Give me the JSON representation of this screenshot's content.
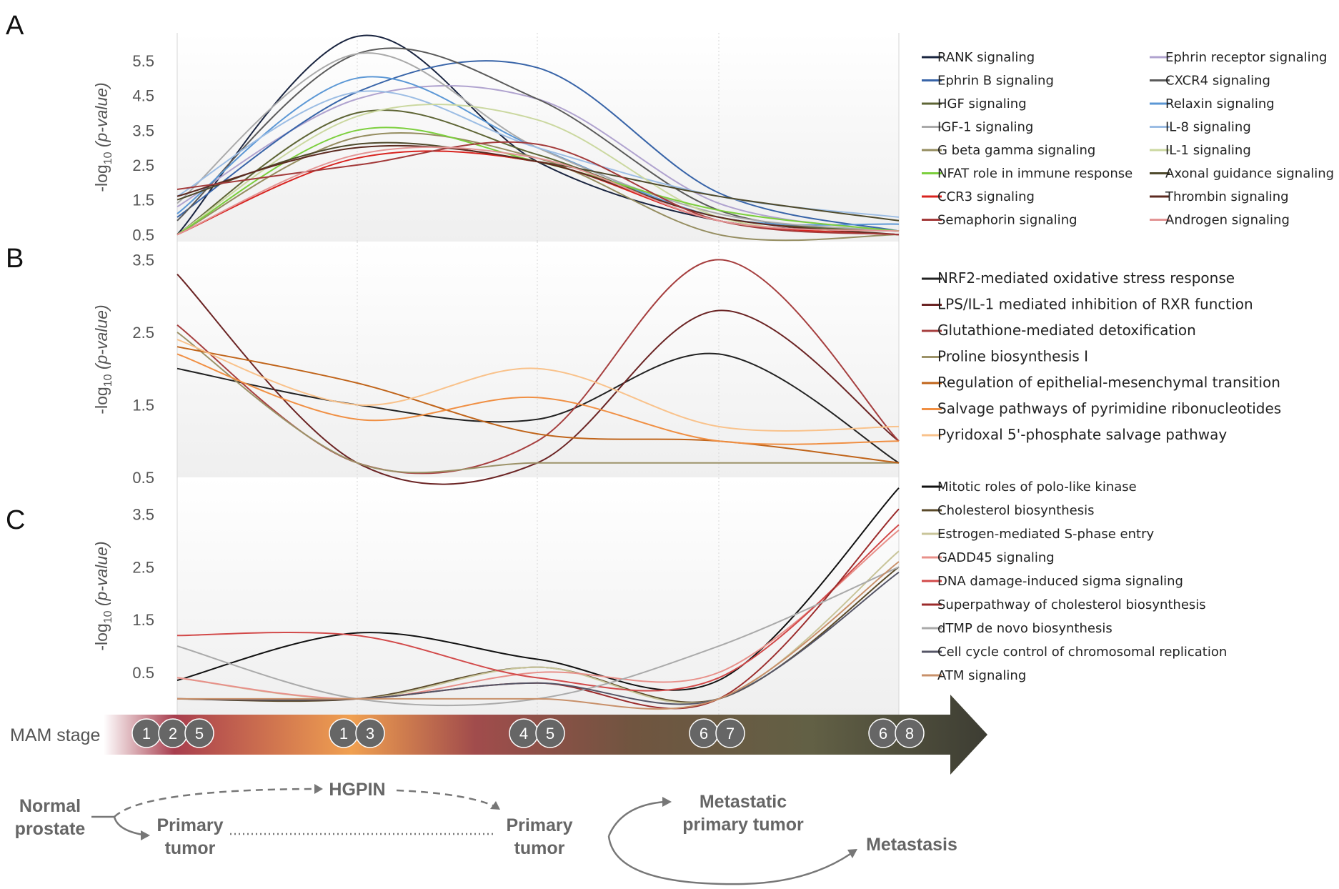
{
  "panels": [
    {
      "letter": "A",
      "ylabel_main": "-log",
      "ylabel_sub": "10",
      "ylabel_rest": " (p-value)",
      "yticks": [
        "0.5",
        "1.5",
        "2.5",
        "3.5",
        "4.5",
        "5.5"
      ]
    },
    {
      "letter": "B",
      "ylabel_main": "-log",
      "ylabel_sub": "10",
      "ylabel_rest": " (p-value)",
      "yticks": [
        "0.5",
        "1.5",
        "2.5",
        "3.5"
      ]
    },
    {
      "letter": "C",
      "ylabel_main": "-log",
      "ylabel_sub": "10",
      "ylabel_rest": " (p-value)",
      "yticks": [
        "0.5",
        "1.5",
        "2.5",
        "3.5"
      ]
    }
  ],
  "chart_data": [
    {
      "type": "line",
      "panel": "A",
      "x_stages": [
        "1 2 5",
        "1 3",
        "4 5",
        "6 7",
        "6 8"
      ],
      "ylim": [
        0.3,
        6.3
      ],
      "yticks": [
        0.5,
        1.5,
        2.5,
        3.5,
        4.5,
        5.5
      ],
      "legend_placement": "right, two columns",
      "series": [
        {
          "name": "RANK signaling",
          "color": "#1a2540",
          "values": [
            0.5,
            6.2,
            2.6,
            0.9,
            0.6
          ]
        },
        {
          "name": "Ephrin receptor signaling",
          "color": "#b0a3cf",
          "values": [
            1.3,
            4.4,
            4.4,
            1.4,
            0.6
          ]
        },
        {
          "name": "Ephrin B signaling",
          "color": "#3864a8",
          "values": [
            1.0,
            4.6,
            5.3,
            1.7,
            0.6
          ]
        },
        {
          "name": "CXCR4 signaling",
          "color": "#5a5a5a",
          "values": [
            0.9,
            5.7,
            4.4,
            1.2,
            0.6
          ]
        },
        {
          "name": "HGF signaling",
          "color": "#5e6535",
          "values": [
            0.5,
            4.0,
            2.8,
            1.0,
            0.6
          ]
        },
        {
          "name": "Relaxin signaling",
          "color": "#5b97d5",
          "values": [
            1.1,
            5.0,
            3.0,
            1.0,
            0.8
          ]
        },
        {
          "name": "IGF-1 signaling",
          "color": "#aaaaaa",
          "values": [
            1.4,
            5.7,
            3.0,
            1.1,
            0.6
          ]
        },
        {
          "name": "IL-8 signaling",
          "color": "#9cbde4",
          "values": [
            1.6,
            4.6,
            3.0,
            1.6,
            1.0
          ]
        },
        {
          "name": "G beta gamma signaling",
          "color": "#958d60",
          "values": [
            0.5,
            3.3,
            2.7,
            0.5,
            0.5
          ]
        },
        {
          "name": "IL-1 signaling",
          "color": "#cbd8a0",
          "values": [
            0.5,
            3.9,
            3.8,
            1.0,
            0.6
          ]
        },
        {
          "name": "NFAT role in immune response",
          "color": "#7ccf3d",
          "values": [
            0.5,
            3.5,
            2.6,
            1.2,
            0.6
          ]
        },
        {
          "name": "Axonal guidance signaling",
          "color": "#4f4a2c",
          "values": [
            1.5,
            3.1,
            2.6,
            1.6,
            0.9
          ]
        },
        {
          "name": "CCR3 signaling",
          "color": "#d8231f",
          "values": [
            0.5,
            2.7,
            2.6,
            0.9,
            0.5
          ]
        },
        {
          "name": "Thrombin signaling",
          "color": "#5c2a20",
          "values": [
            1.6,
            3.0,
            2.6,
            1.0,
            0.5
          ]
        },
        {
          "name": "Semaphorin signaling",
          "color": "#a33a3a",
          "values": [
            1.8,
            2.5,
            3.1,
            0.9,
            0.5
          ]
        },
        {
          "name": "Androgen signaling",
          "color": "#e39595",
          "values": [
            0.5,
            2.8,
            2.7,
            0.9,
            0.6
          ]
        }
      ]
    },
    {
      "type": "line",
      "panel": "B",
      "x_stages": [
        "1 2 5",
        "1 3",
        "4 5",
        "6 7",
        "6 8"
      ],
      "ylim": [
        0.5,
        3.75
      ],
      "yticks": [
        0.5,
        1.5,
        2.5,
        3.5
      ],
      "legend_placement": "right",
      "series": [
        {
          "name": "NRF2-mediated oxidative stress response",
          "color": "#222222",
          "values": [
            2.0,
            1.5,
            1.3,
            2.2,
            0.7
          ]
        },
        {
          "name": "LPS/IL-1 mediated inhibition of RXR function",
          "color": "#6b2424",
          "values": [
            3.3,
            0.7,
            0.7,
            2.8,
            1.0
          ]
        },
        {
          "name": "Glutathione-mediated detoxification",
          "color": "#a63f3f",
          "values": [
            2.6,
            0.7,
            1.0,
            3.5,
            1.0
          ]
        },
        {
          "name": "Proline biosynthesis I",
          "color": "#9c9268",
          "values": [
            2.5,
            0.7,
            0.7,
            0.7,
            0.7
          ]
        },
        {
          "name": "Regulation of epithelial-mesenchymal transition",
          "color": "#c0641a",
          "values": [
            2.3,
            1.8,
            1.1,
            1.0,
            0.7
          ]
        },
        {
          "name": "Salvage pathways of pyrimidine ribonucleotides",
          "color": "#f08f43",
          "values": [
            2.2,
            1.3,
            1.6,
            1.0,
            1.0
          ]
        },
        {
          "name": "Pyridoxal 5'-phosphate salvage pathway",
          "color": "#f9c28b",
          "values": [
            2.4,
            1.5,
            2.0,
            1.2,
            1.2
          ]
        }
      ]
    },
    {
      "type": "line",
      "panel": "C",
      "x_stages": [
        "1 2 5",
        "1 3",
        "4 5",
        "6 7",
        "6 8"
      ],
      "ylim": [
        -0.3,
        4.2
      ],
      "yticks": [
        0.5,
        1.5,
        2.5,
        3.5
      ],
      "legend_placement": "right",
      "series": [
        {
          "name": "Mitotic roles of polo-like kinase",
          "color": "#111111",
          "values": [
            0.35,
            1.25,
            0.75,
            0.35,
            4.0
          ]
        },
        {
          "name": "Cholesterol biosynthesis",
          "color": "#5a4a2a",
          "values": [
            0.0,
            0.0,
            0.6,
            0.0,
            2.5
          ]
        },
        {
          "name": "Estrogen-mediated S-phase entry",
          "color": "#c9c59a",
          "values": [
            0.4,
            0.0,
            0.6,
            0.0,
            2.8
          ]
        },
        {
          "name": "GADD45 signaling",
          "color": "#e8908a",
          "values": [
            0.4,
            0.0,
            0.5,
            0.5,
            3.2
          ]
        },
        {
          "name": "DNA damage-induced sigma signaling",
          "color": "#d24a4a",
          "values": [
            1.2,
            1.2,
            0.4,
            0.4,
            3.3
          ]
        },
        {
          "name": "Superpathway of cholesterol biosynthesis",
          "color": "#9b2b2b",
          "values": [
            0.0,
            0.0,
            0.3,
            0.0,
            3.6
          ]
        },
        {
          "name": "dTMP de novo biosynthesis",
          "color": "#aaaaaa",
          "values": [
            1.0,
            0.0,
            0.0,
            1.0,
            2.5
          ]
        },
        {
          "name": "Cell cycle control of chromosomal replication",
          "color": "#555566",
          "values": [
            0.0,
            0.0,
            0.3,
            0.0,
            2.4
          ]
        },
        {
          "name": "ATM signaling",
          "color": "#c8906a",
          "values": [
            0.0,
            0.0,
            0.0,
            0.0,
            2.6
          ]
        }
      ]
    }
  ],
  "stage_bar": {
    "label": "MAM stage",
    "groups": [
      [
        "1",
        "2",
        "5"
      ],
      [
        "1",
        "3"
      ],
      [
        "4",
        "5"
      ],
      [
        "6",
        "7"
      ],
      [
        "6",
        "8"
      ]
    ],
    "gradient_colors": [
      "#ffffff",
      "#a83e4e",
      "#f0a050",
      "#a14c4c",
      "#705540",
      "#626045",
      "#3d3d33"
    ],
    "badge_color": "#666666"
  },
  "progression": {
    "normal_line1": "Normal",
    "normal_line2": "prostate",
    "hgpin": "HGPIN",
    "primary1_line1": "Primary",
    "primary1_line2": "tumor",
    "primary2_line1": "Primary",
    "primary2_line2": "tumor",
    "metastatic_line1": "Metastatic",
    "metastatic_line2": "primary tumor",
    "metastasis": "Metastasis"
  }
}
